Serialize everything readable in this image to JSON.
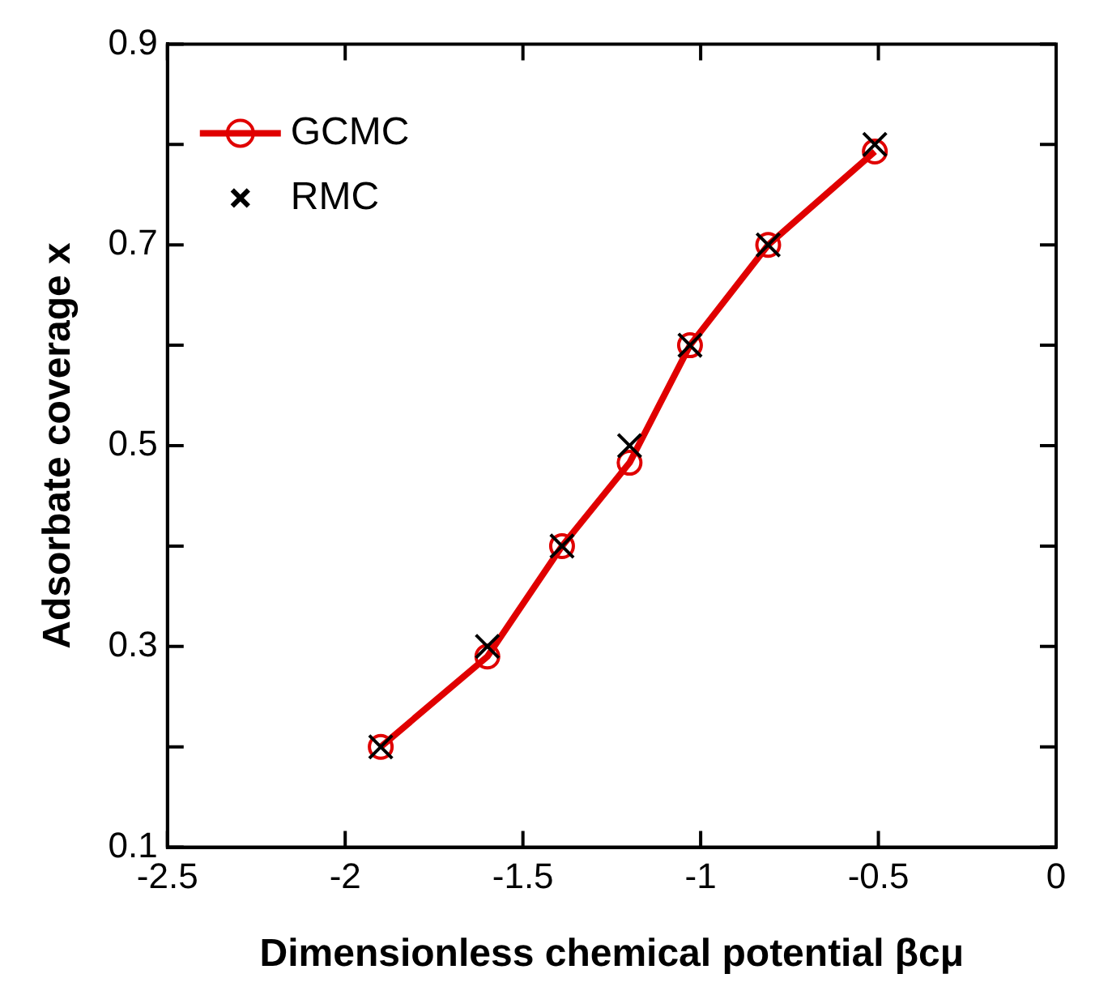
{
  "chart_data": {
    "type": "line",
    "xlabel": "Dimensionless chemical potential βcμ",
    "ylabel": "Adsorbate coverage x",
    "xlim": [
      -2.5,
      0
    ],
    "xticks": [
      -2.5,
      -2,
      -1.5,
      -1,
      -0.5,
      0
    ],
    "ylim": [
      0.1,
      0.9
    ],
    "yticks": [
      0.1,
      {
        "value": 0.2,
        "label": null
      },
      0.3,
      {
        "value": 0.4,
        "label": null
      },
      0.5,
      {
        "value": 0.6,
        "label": null
      },
      0.7,
      {
        "value": 0.8,
        "label": null
      },
      0.9
    ],
    "grid": false,
    "legend": "top left",
    "series": [
      {
        "name": "GCMC",
        "type": "line",
        "color": "#e00000",
        "marker": "circle",
        "x": [
          -1.9,
          -1.6,
          -1.39,
          -1.2,
          -1.03,
          -0.81,
          -0.51
        ],
        "values": [
          0.2,
          0.29,
          0.4,
          0.483,
          0.6,
          0.7,
          0.793
        ]
      },
      {
        "name": "RMC",
        "type": "scatter",
        "color": "#000000",
        "marker": "cross",
        "x": [
          -1.9,
          -1.6,
          -1.39,
          -1.2,
          -1.03,
          -0.81,
          -0.51
        ],
        "values": [
          0.2,
          0.3,
          0.4,
          0.5,
          0.6,
          0.7,
          0.8
        ]
      }
    ]
  }
}
